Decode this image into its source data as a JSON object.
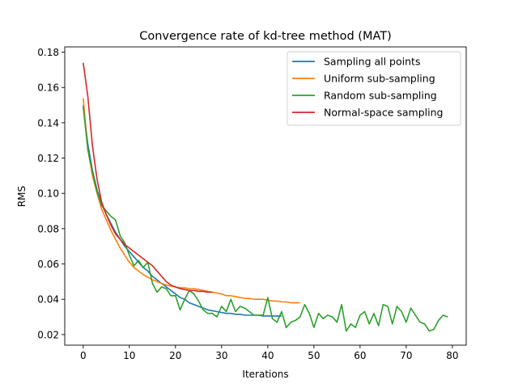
{
  "chart_data": {
    "type": "line",
    "title": "Convergence rate of kd-tree method (MAT)",
    "xlabel": "Iterations",
    "ylabel": "RMS",
    "xlim": [
      -4,
      83
    ],
    "ylim": [
      0.014,
      0.183
    ],
    "xticks": [
      0,
      10,
      20,
      30,
      40,
      50,
      60,
      70,
      80
    ],
    "yticks": [
      0.02,
      0.04,
      0.06,
      0.08,
      0.1,
      0.12,
      0.14,
      0.16,
      0.18
    ],
    "ytick_labels": [
      "0.02",
      "0.04",
      "0.06",
      "0.08",
      "0.10",
      "0.12",
      "0.14",
      "0.16",
      "0.18"
    ],
    "grid": false,
    "legend_position": "top-right",
    "series": [
      {
        "name": "Sampling all points",
        "color": "#1f77b4",
        "x": [
          0,
          1,
          2,
          3,
          4,
          5,
          6,
          7,
          8,
          9,
          10,
          11,
          12,
          13,
          14,
          15,
          16,
          17,
          18,
          19,
          20,
          21,
          22,
          23,
          24,
          25,
          26,
          27,
          28,
          29,
          30,
          31,
          32,
          33,
          34,
          35,
          36,
          37,
          38,
          39,
          40,
          41,
          42,
          43
        ],
        "y": [
          0.15,
          0.128,
          0.113,
          0.102,
          0.094,
          0.088,
          0.083,
          0.078,
          0.074,
          0.07,
          0.067,
          0.064,
          0.061,
          0.058,
          0.056,
          0.053,
          0.051,
          0.049,
          0.047,
          0.045,
          0.043,
          0.041,
          0.04,
          0.038,
          0.037,
          0.036,
          0.035,
          0.034,
          0.0335,
          0.033,
          0.0325,
          0.032,
          0.032,
          0.0315,
          0.0315,
          0.031,
          0.031,
          0.031,
          0.031,
          0.0305,
          0.0305,
          0.0305,
          0.0305,
          0.0305
        ]
      },
      {
        "name": "Uniform sub-sampling",
        "color": "#ff7f0e",
        "x": [
          0,
          1,
          2,
          3,
          4,
          5,
          6,
          7,
          8,
          9,
          10,
          11,
          12,
          13,
          14,
          15,
          16,
          17,
          18,
          19,
          20,
          21,
          22,
          23,
          24,
          25,
          26,
          27,
          28,
          29,
          30,
          31,
          32,
          33,
          34,
          35,
          36,
          37,
          38,
          39,
          40,
          41,
          42,
          43,
          44,
          45,
          46,
          47
        ],
        "y": [
          0.154,
          0.125,
          0.11,
          0.1,
          0.091,
          0.085,
          0.079,
          0.074,
          0.069,
          0.065,
          0.061,
          0.058,
          0.056,
          0.054,
          0.0525,
          0.051,
          0.05,
          0.049,
          0.048,
          0.0475,
          0.047,
          0.0465,
          0.0465,
          0.046,
          0.046,
          0.0455,
          0.045,
          0.0445,
          0.044,
          0.0435,
          0.043,
          0.042,
          0.042,
          0.0415,
          0.041,
          0.0405,
          0.0405,
          0.04,
          0.04,
          0.04,
          0.0395,
          0.039,
          0.039,
          0.0385,
          0.0385,
          0.038,
          0.038,
          0.038
        ]
      },
      {
        "name": "Random sub-sampling",
        "color": "#2ca02c",
        "x": [
          0,
          1,
          2,
          3,
          4,
          5,
          6,
          7,
          8,
          9,
          10,
          11,
          12,
          13,
          14,
          15,
          16,
          17,
          18,
          19,
          20,
          21,
          22,
          23,
          24,
          25,
          26,
          27,
          28,
          29,
          30,
          31,
          32,
          33,
          34,
          35,
          36,
          37,
          38,
          39,
          40,
          41,
          42,
          43,
          44,
          45,
          46,
          47,
          48,
          49,
          50,
          51,
          52,
          53,
          54,
          55,
          56,
          57,
          58,
          59,
          60,
          61,
          62,
          63,
          64,
          65,
          66,
          67,
          68,
          69,
          70,
          71,
          72,
          73,
          74,
          75,
          76,
          77,
          78,
          79
        ],
        "y": [
          0.149,
          0.125,
          0.112,
          0.101,
          0.093,
          0.09,
          0.087,
          0.085,
          0.076,
          0.072,
          0.065,
          0.059,
          0.062,
          0.058,
          0.061,
          0.049,
          0.044,
          0.047,
          0.046,
          0.042,
          0.042,
          0.034,
          0.04,
          0.045,
          0.043,
          0.039,
          0.034,
          0.032,
          0.032,
          0.03,
          0.036,
          0.033,
          0.04,
          0.033,
          0.036,
          0.035,
          0.033,
          0.031,
          0.031,
          0.031,
          0.041,
          0.029,
          0.027,
          0.033,
          0.024,
          0.027,
          0.028,
          0.03,
          0.037,
          0.032,
          0.024,
          0.032,
          0.029,
          0.031,
          0.03,
          0.027,
          0.037,
          0.022,
          0.026,
          0.024,
          0.031,
          0.033,
          0.026,
          0.032,
          0.025,
          0.037,
          0.036,
          0.026,
          0.036,
          0.033,
          0.027,
          0.035,
          0.031,
          0.027,
          0.026,
          0.022,
          0.023,
          0.028,
          0.031,
          0.03
        ]
      },
      {
        "name": "Normal-space sampling",
        "color": "#d62728",
        "x": [
          0,
          1,
          2,
          3,
          4,
          5,
          6,
          7,
          8,
          9,
          10,
          11,
          12,
          13,
          14,
          15,
          16,
          17,
          18,
          19,
          20,
          21,
          22,
          23,
          24,
          25,
          26,
          27,
          28
        ],
        "y": [
          0.174,
          0.155,
          0.127,
          0.108,
          0.095,
          0.088,
          0.082,
          0.077,
          0.074,
          0.071,
          0.069,
          0.067,
          0.065,
          0.063,
          0.061,
          0.059,
          0.056,
          0.053,
          0.05,
          0.048,
          0.047,
          0.046,
          0.0455,
          0.045,
          0.045,
          0.0445,
          0.0445,
          0.044,
          0.044
        ]
      }
    ]
  }
}
